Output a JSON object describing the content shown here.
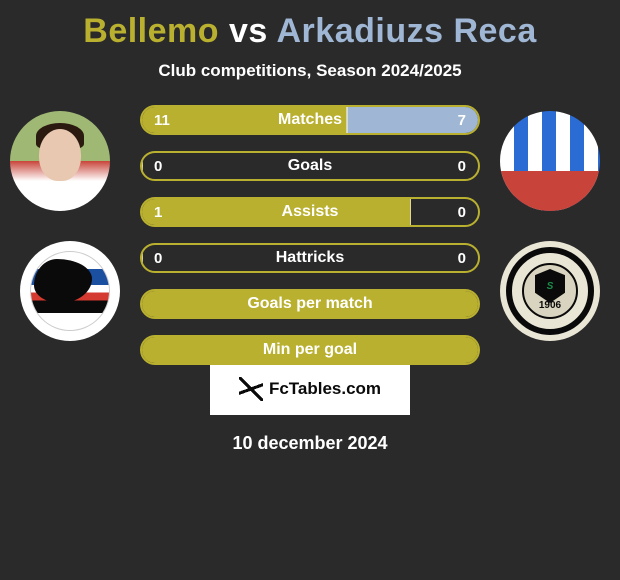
{
  "title": {
    "left": "Bellemo",
    "vs": "vs",
    "right": "Arkadiuzs Reca"
  },
  "title_color_left": "#b9b02f",
  "title_color_vs": "#ffffff",
  "title_color_right": "#9fb7d4",
  "subtitle": "Club competitions, Season 2024/2025",
  "date": "10 december 2024",
  "logo_text": "FcTables.com",
  "club_right_year": "1906",
  "club_right_monogram": "S",
  "colors": {
    "background": "#2a2a2a",
    "left": "#b9b02f",
    "right": "#9fb7d4",
    "text": "#ffffff"
  },
  "stats": [
    {
      "label": "Matches",
      "left_val": "11",
      "right_val": "7",
      "left_pct": 61,
      "right_pct": 39
    },
    {
      "label": "Goals",
      "left_val": "0",
      "right_val": "0",
      "left_pct": 0,
      "right_pct": 0
    },
    {
      "label": "Assists",
      "left_val": "1",
      "right_val": "0",
      "left_pct": 80,
      "right_pct": 0
    },
    {
      "label": "Hattricks",
      "left_val": "0",
      "right_val": "0",
      "left_pct": 0,
      "right_pct": 0
    },
    {
      "label": "Goals per match",
      "left_val": "",
      "right_val": "",
      "left_pct": 100,
      "right_pct": 0,
      "full_left": true
    },
    {
      "label": "Min per goal",
      "left_val": "",
      "right_val": "",
      "left_pct": 100,
      "right_pct": 0,
      "full_left": true
    }
  ]
}
